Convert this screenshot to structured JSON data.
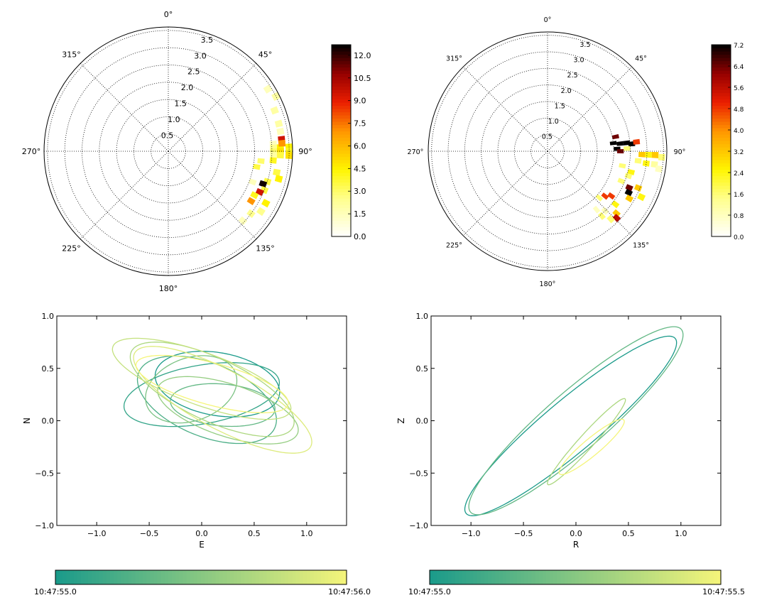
{
  "chart_data": [
    {
      "type": "heatmap",
      "subtype": "polar",
      "angular_tick_labels": [
        "0°",
        "45°",
        "90°",
        "135°",
        "180°",
        "225°",
        "270°",
        "315°"
      ],
      "radial_tick_labels": [
        "0.5",
        "1.0",
        "1.5",
        "2.0",
        "2.5",
        "3.0",
        "3.5"
      ],
      "rlim": [
        0,
        3.6
      ],
      "grid": true,
      "colormap": "hot_r",
      "colorbar": {
        "ticks": [
          "0.0",
          "1.5",
          "3.0",
          "4.5",
          "6.0",
          "7.5",
          "9.0",
          "10.5",
          "12.0"
        ],
        "range": [
          0,
          12.7
        ]
      },
      "cells": [
        {
          "theta": 86,
          "r": 3.05,
          "v": 1.5
        },
        {
          "theta": 88,
          "r": 3.05,
          "v": 2.5
        },
        {
          "theta": 90,
          "r": 3.05,
          "v": 3.0
        },
        {
          "theta": 92,
          "r": 3.05,
          "v": 2.0
        },
        {
          "theta": 95,
          "r": 3.05,
          "v": 4.0
        },
        {
          "theta": 88,
          "r": 3.25,
          "v": 4.5
        },
        {
          "theta": 90,
          "r": 3.25,
          "v": 5.0
        },
        {
          "theta": 92,
          "r": 3.25,
          "v": 3.5
        },
        {
          "theta": 84,
          "r": 3.3,
          "v": 9.5
        },
        {
          "theta": 86,
          "r": 3.3,
          "v": 7.0
        },
        {
          "theta": 88,
          "r": 3.5,
          "v": 4.5
        },
        {
          "theta": 90,
          "r": 3.5,
          "v": 4.0
        },
        {
          "theta": 92,
          "r": 3.5,
          "v": 5.0
        },
        {
          "theta": 80,
          "r": 3.3,
          "v": 1.5
        },
        {
          "theta": 76,
          "r": 3.3,
          "v": 2.0
        },
        {
          "theta": 69,
          "r": 3.3,
          "v": 2.0
        },
        {
          "theta": 63,
          "r": 3.5,
          "v": 2.0
        },
        {
          "theta": 58,
          "r": 3.4,
          "v": 1.5
        },
        {
          "theta": 100,
          "r": 2.6,
          "v": 3.5
        },
        {
          "theta": 96,
          "r": 2.7,
          "v": 3.0
        },
        {
          "theta": 107,
          "r": 3.0,
          "v": 3.5
        },
        {
          "theta": 109,
          "r": 2.9,
          "v": 12.5
        },
        {
          "theta": 112,
          "r": 3.0,
          "v": 3.5
        },
        {
          "theta": 114,
          "r": 2.9,
          "v": 9.5
        },
        {
          "theta": 117,
          "r": 2.8,
          "v": 4.0
        },
        {
          "theta": 121,
          "r": 2.8,
          "v": 7.0
        },
        {
          "theta": 118,
          "r": 3.2,
          "v": 4.5
        },
        {
          "theta": 123,
          "r": 3.2,
          "v": 2.5
        },
        {
          "theta": 101,
          "r": 3.2,
          "v": 3.5
        },
        {
          "theta": 104,
          "r": 3.3,
          "v": 4.5
        },
        {
          "theta": 110,
          "r": 2.6,
          "v": 1.5
        },
        {
          "theta": 133,
          "r": 2.95,
          "v": 1.5
        },
        {
          "theta": 127,
          "r": 3.0,
          "v": 2.5
        }
      ]
    },
    {
      "type": "heatmap",
      "subtype": "polar",
      "angular_tick_labels": [
        "0°",
        "45°",
        "90°",
        "135°",
        "180°",
        "225°",
        "270°",
        "315°"
      ],
      "radial_tick_labels": [
        "0.5",
        "1.0",
        "1.5",
        "2.0",
        "2.5",
        "3.0",
        "3.5"
      ],
      "rlim": [
        0,
        3.6
      ],
      "grid": true,
      "colormap": "hot_r",
      "colorbar": {
        "ticks": [
          "0.0",
          "0.8",
          "1.6",
          "2.4",
          "3.2",
          "4.0",
          "4.8",
          "5.6",
          "6.4",
          "7.2"
        ],
        "range": [
          0,
          7.2
        ]
      },
      "cells": [
        {
          "theta": 78,
          "r": 2.1,
          "v": 6.4
        },
        {
          "theta": 83,
          "r": 2.0,
          "v": 7.2
        },
        {
          "theta": 84,
          "r": 2.2,
          "v": 7.2
        },
        {
          "theta": 84,
          "r": 2.4,
          "v": 7.2
        },
        {
          "theta": 85,
          "r": 2.55,
          "v": 7.2
        },
        {
          "theta": 84,
          "r": 2.7,
          "v": 4.8
        },
        {
          "theta": 88,
          "r": 2.1,
          "v": 7.2
        },
        {
          "theta": 90,
          "r": 2.2,
          "v": 6.4
        },
        {
          "theta": 88,
          "r": 2.4,
          "v": 1.6
        },
        {
          "theta": 92,
          "r": 2.85,
          "v": 3.2
        },
        {
          "theta": 92,
          "r": 3.05,
          "v": 2.4
        },
        {
          "theta": 92,
          "r": 3.25,
          "v": 3.2
        },
        {
          "theta": 93,
          "r": 3.45,
          "v": 1.6
        },
        {
          "theta": 96,
          "r": 2.75,
          "v": 1.6
        },
        {
          "theta": 97,
          "r": 3.0,
          "v": 2.4
        },
        {
          "theta": 97,
          "r": 3.25,
          "v": 1.2
        },
        {
          "theta": 99,
          "r": 3.4,
          "v": 0.8
        },
        {
          "theta": 101,
          "r": 2.3,
          "v": 1.6
        },
        {
          "theta": 104,
          "r": 2.6,
          "v": 2.4
        },
        {
          "theta": 107,
          "r": 2.55,
          "v": 1.6
        },
        {
          "theta": 112,
          "r": 2.4,
          "v": 1.6
        },
        {
          "theta": 114,
          "r": 2.7,
          "v": 6.4
        },
        {
          "theta": 117,
          "r": 2.75,
          "v": 7.2
        },
        {
          "theta": 112,
          "r": 2.95,
          "v": 3.2
        },
        {
          "theta": 120,
          "r": 2.85,
          "v": 3.2
        },
        {
          "theta": 116,
          "r": 3.15,
          "v": 2.4
        },
        {
          "theta": 125,
          "r": 2.35,
          "v": 4.8
        },
        {
          "theta": 128,
          "r": 2.2,
          "v": 4.8
        },
        {
          "theta": 132,
          "r": 2.1,
          "v": 1.6
        },
        {
          "theta": 128,
          "r": 2.6,
          "v": 2.4
        },
        {
          "theta": 132,
          "r": 2.8,
          "v": 3.2
        },
        {
          "theta": 134,
          "r": 2.9,
          "v": 5.6
        },
        {
          "theta": 137,
          "r": 2.8,
          "v": 1.6
        },
        {
          "theta": 140,
          "r": 2.55,
          "v": 1.6
        },
        {
          "theta": 140,
          "r": 2.3,
          "v": 0.8
        },
        {
          "theta": 136,
          "r": 2.5,
          "v": 0.8
        }
      ]
    },
    {
      "type": "line",
      "subtype": "hodogram",
      "xlabel": "E",
      "ylabel": "N",
      "xlim": [
        -1.38,
        1.38
      ],
      "ylim": [
        -1.0,
        1.0
      ],
      "x_ticks": [
        "−1.0",
        "−0.5",
        "0.0",
        "0.5",
        "1.0"
      ],
      "x_tick_values": [
        -1.0,
        -0.5,
        0.0,
        0.5,
        1.0
      ],
      "y_ticks": [
        "−1.0",
        "−0.5",
        "0.0",
        "0.5",
        "1.0"
      ],
      "y_tick_values": [
        -1.0,
        -0.5,
        0.0,
        0.5,
        1.0
      ],
      "color_start": "#1a9a8a",
      "color_end": "#f5f57a",
      "colorbar": {
        "min_label": "10:47:55.0",
        "max_label": "10:47:56.0"
      },
      "loops": [
        {
          "cx": 0.15,
          "cy": 0.35,
          "rx": 0.6,
          "ry": 0.3,
          "rot": -10
        },
        {
          "cx": 0.0,
          "cy": 0.25,
          "rx": 0.75,
          "ry": 0.28,
          "rot": 10
        },
        {
          "cx": 0.05,
          "cy": 0.2,
          "rx": 0.7,
          "ry": 0.35,
          "rot": -22
        },
        {
          "cx": 0.2,
          "cy": 0.15,
          "rx": 0.5,
          "ry": 0.2,
          "rot": -5
        },
        {
          "cx": -0.1,
          "cy": 0.3,
          "rx": 0.45,
          "ry": 0.3,
          "rot": 20
        },
        {
          "cx": 0.25,
          "cy": 0.1,
          "rx": 0.7,
          "ry": 0.25,
          "rot": -18
        },
        {
          "cx": 0.1,
          "cy": 0.3,
          "rx": 0.85,
          "ry": 0.3,
          "rot": -25
        },
        {
          "cx": 0.0,
          "cy": 0.4,
          "rx": 0.9,
          "ry": 0.25,
          "rot": -20
        },
        {
          "cx": 0.2,
          "cy": 0.2,
          "rx": 0.95,
          "ry": 0.28,
          "rot": -28
        },
        {
          "cx": 0.1,
          "cy": 0.35,
          "rx": 0.75,
          "ry": 0.2,
          "rot": -15
        }
      ]
    },
    {
      "type": "line",
      "subtype": "hodogram",
      "xlabel": "R",
      "ylabel": "Z",
      "xlim": [
        -1.38,
        1.38
      ],
      "ylim": [
        -1.0,
        1.0
      ],
      "x_ticks": [
        "−1.0",
        "−0.5",
        "0.0",
        "0.5",
        "1.0"
      ],
      "x_tick_values": [
        -1.0,
        -0.5,
        0.0,
        0.5,
        1.0
      ],
      "y_ticks": [
        "−1.0",
        "−0.5",
        "0.0",
        "0.5",
        "1.0"
      ],
      "y_tick_values": [
        -1.0,
        -0.5,
        0.0,
        0.5,
        1.0
      ],
      "color_start": "#1a9a8a",
      "color_end": "#f5f57a",
      "colorbar": {
        "min_label": "10:47:55.0",
        "max_label": "10:47:55.5"
      },
      "loops": [
        {
          "cx": -0.05,
          "cy": -0.05,
          "rx": 1.3,
          "ry": 0.25,
          "rot": 40
        },
        {
          "cx": 0.0,
          "cy": 0.0,
          "rx": 1.33,
          "ry": 0.28,
          "rot": 41
        },
        {
          "cx": 0.1,
          "cy": -0.2,
          "rx": 0.55,
          "ry": 0.07,
          "rot": 48
        },
        {
          "cx": 0.15,
          "cy": -0.25,
          "rx": 0.4,
          "ry": 0.08,
          "rot": 40
        }
      ]
    }
  ]
}
